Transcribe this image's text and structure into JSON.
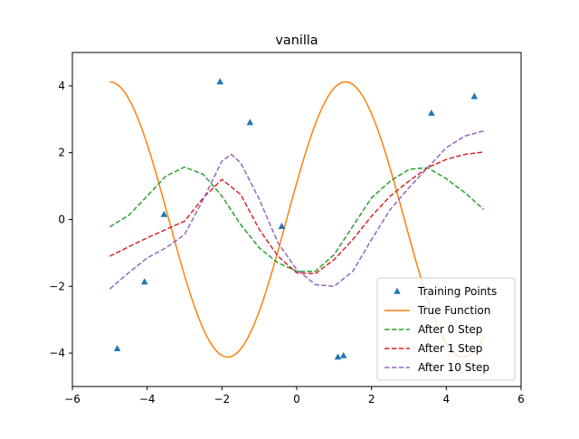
{
  "chart_data": {
    "type": "line",
    "title": "vanilla",
    "xlabel": "",
    "ylabel": "",
    "xlim": [
      -6,
      6
    ],
    "ylim": [
      -5,
      5
    ],
    "xticks": [
      -6,
      -4,
      -2,
      0,
      2,
      4,
      6
    ],
    "yticks": [
      -4,
      -2,
      0,
      2,
      4
    ],
    "xtick_labels": [
      "−6",
      "−4",
      "−2",
      "0",
      "2",
      "4",
      "6"
    ],
    "ytick_labels": [
      "−4",
      "−2",
      "0",
      "2",
      "4"
    ],
    "grid": false,
    "legend_position": "lower-right",
    "series": [
      {
        "name": "Training Points",
        "kind": "scatter",
        "marker": "triangle-up",
        "color": "#1f77b4",
        "x": [
          -4.8,
          -4.07,
          -3.55,
          -2.05,
          -1.25,
          -0.4,
          1.1,
          1.25,
          3.6,
          4.75
        ],
        "y": [
          -3.87,
          -1.87,
          0.15,
          4.12,
          2.9,
          -0.21,
          -4.12,
          -4.08,
          3.18,
          3.68
        ]
      },
      {
        "name": "True Function",
        "kind": "line",
        "style": "solid",
        "color": "#ff7f0e",
        "amplitude": 4.12,
        "period": 6.3,
        "phase": 0.27,
        "x_range": [
          -5,
          5
        ],
        "samples": 201
      },
      {
        "name": "After 0 Step",
        "kind": "line",
        "style": "dashed",
        "color": "#2ca02c",
        "x": [
          -5,
          -4.5,
          -4,
          -3.5,
          -3,
          -2.5,
          -2,
          -1.5,
          -1,
          -0.5,
          0,
          0.5,
          1,
          1.5,
          2,
          2.5,
          3,
          3.5,
          4,
          4.5,
          5
        ],
        "y": [
          -0.22,
          0.12,
          0.7,
          1.3,
          1.57,
          1.35,
          0.7,
          -0.15,
          -0.85,
          -1.3,
          -1.55,
          -1.55,
          -1.05,
          -0.2,
          0.65,
          1.15,
          1.5,
          1.55,
          1.22,
          0.8,
          0.3
        ]
      },
      {
        "name": "After 1 Step",
        "kind": "line",
        "style": "dashed",
        "color": "#d62728",
        "x": [
          -5,
          -4.5,
          -4,
          -3.5,
          -3,
          -2.5,
          -2,
          -1.5,
          -1,
          -0.5,
          0,
          0.5,
          1,
          1.5,
          2,
          2.5,
          3,
          3.5,
          4,
          4.5,
          5
        ],
        "y": [
          -1.1,
          -0.82,
          -0.55,
          -0.3,
          -0.05,
          0.65,
          1.2,
          0.75,
          -0.3,
          -1.1,
          -1.6,
          -1.62,
          -1.2,
          -0.6,
          0.1,
          0.7,
          1.15,
          1.55,
          1.8,
          1.95,
          2.02
        ]
      },
      {
        "name": "After 10 Step",
        "kind": "line",
        "style": "dashed",
        "color": "#9467bd",
        "x": [
          -5,
          -4.5,
          -4,
          -3.5,
          -3,
          -2.5,
          -2,
          -1.75,
          -1.5,
          -1,
          -0.5,
          0,
          0.5,
          1,
          1.5,
          2,
          2.5,
          3,
          3.5,
          4,
          4.5,
          5
        ],
        "y": [
          -2.08,
          -1.6,
          -1.15,
          -0.85,
          -0.45,
          0.6,
          1.75,
          1.95,
          1.7,
          0.6,
          -0.7,
          -1.5,
          -1.95,
          -2.0,
          -1.55,
          -0.6,
          0.3,
          0.95,
          1.55,
          2.15,
          2.5,
          2.65
        ]
      }
    ]
  }
}
